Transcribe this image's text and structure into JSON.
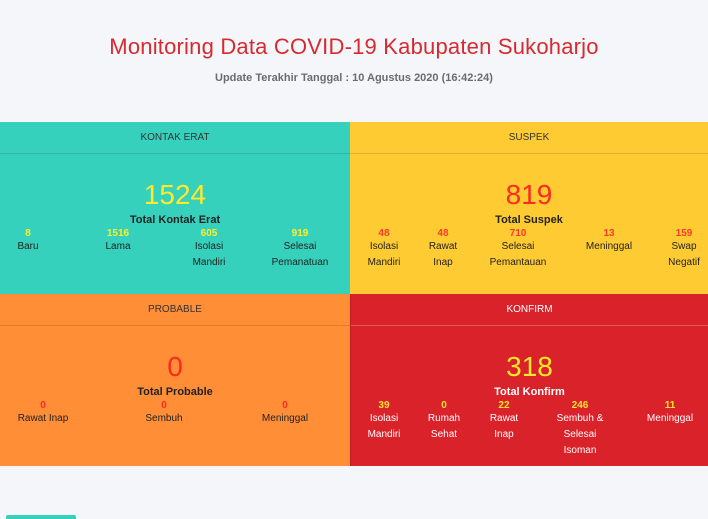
{
  "header": {
    "title": "Monitoring Data COVID-19 Kabupaten Sukoharjo",
    "updated": "Update Terakhir Tanggal : 10 Agustus 2020 (16:42:24)"
  },
  "kontak_erat": {
    "heading": "KONTAK ERAT",
    "total_value": "1524",
    "total_label": "Total Kontak Erat",
    "stats": [
      {
        "value": "8",
        "label": [
          "Baru"
        ]
      },
      {
        "value": "1516",
        "label": [
          "Lama"
        ]
      },
      {
        "value": "605",
        "label": [
          "Isolasi",
          "Mandiri"
        ]
      },
      {
        "value": "919",
        "label": [
          "Selesai",
          "Pemanatuan"
        ]
      }
    ]
  },
  "suspek": {
    "heading": "SUSPEK",
    "total_value": "819",
    "total_label": "Total Suspek",
    "stats": [
      {
        "value": "48",
        "label": [
          "Isolasi",
          "Mandiri"
        ]
      },
      {
        "value": "48",
        "label": [
          "Rawat",
          "Inap"
        ]
      },
      {
        "value": "710",
        "label": [
          "Selesai",
          "Pemantauan"
        ]
      },
      {
        "value": "13",
        "label": [
          "Meninggal"
        ]
      },
      {
        "value": "159",
        "label": [
          "Swap",
          "Negatif"
        ]
      }
    ]
  },
  "probable": {
    "heading": "PROBABLE",
    "total_value": "0",
    "total_label": "Total Probable",
    "stats": [
      {
        "value": "0",
        "label": [
          "Rawat Inap"
        ]
      },
      {
        "value": "0",
        "label": [
          "Sembuh"
        ]
      },
      {
        "value": "0",
        "label": [
          "Meninggal"
        ]
      }
    ]
  },
  "konfirm": {
    "heading": "KONFIRM",
    "total_value": "318",
    "total_label": "Total Konfirm",
    "stats": [
      {
        "value": "39",
        "label": [
          "Isolasi",
          "Mandiri"
        ]
      },
      {
        "value": "0",
        "label": [
          "Rumah",
          "Sehat"
        ]
      },
      {
        "value": "22",
        "label": [
          "Rawat",
          "Inap"
        ]
      },
      {
        "value": "246",
        "label": [
          "Sembuh &",
          "Selesai",
          "Isoman"
        ]
      },
      {
        "value": "11",
        "label": [
          "Meninggal"
        ]
      }
    ]
  },
  "colors": {
    "kontak_erat": "#36d1bc",
    "suspek": "#ffcb33",
    "probable": "#ff8e37",
    "konfirm": "#d9222a"
  }
}
